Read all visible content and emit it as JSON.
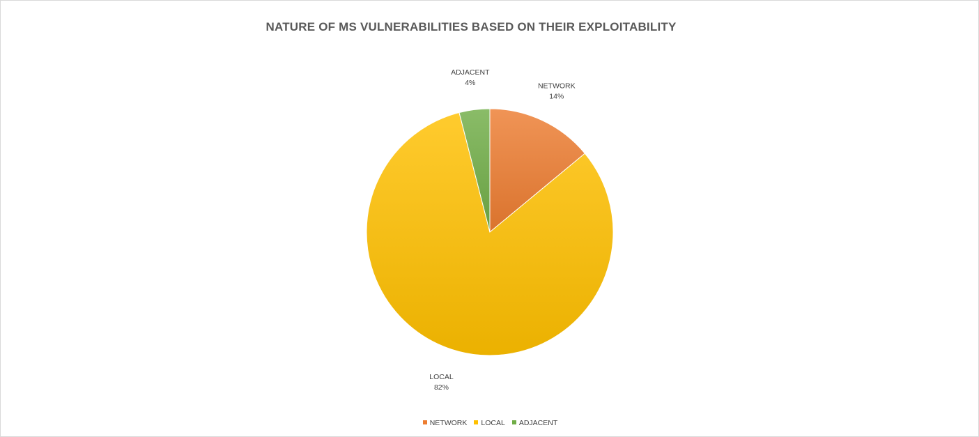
{
  "chart_data": {
    "type": "pie",
    "title": "NATURE OF MS VULNERABILITIES BASED ON THEIR EXPLOITABILITY",
    "categories": [
      "NETWORK",
      "LOCAL",
      "ADJACENT"
    ],
    "values": [
      14,
      82,
      4
    ],
    "value_labels": [
      "14%",
      "82%",
      "4%"
    ],
    "colors": [
      "#ed7d31",
      "#ffc000",
      "#70ad47"
    ],
    "start_angle_deg": 0,
    "direction": "clockwise",
    "legend_position": "bottom"
  }
}
